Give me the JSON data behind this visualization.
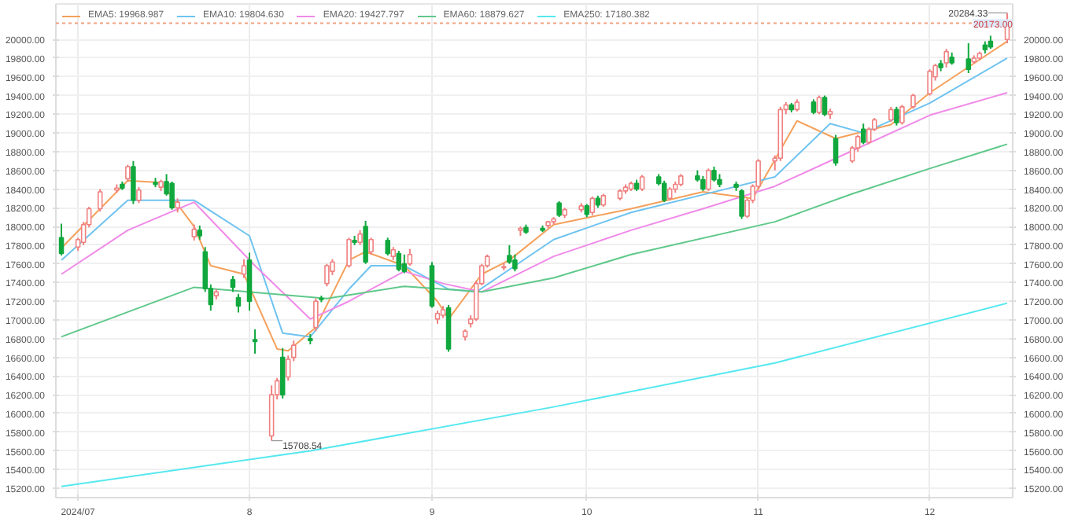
{
  "chart_data": {
    "type": "candlestick",
    "x": [
      "2024-06-28",
      "2024-07-01",
      "2024-07-02",
      "2024-07-03",
      "2024-07-05",
      "2024-07-08",
      "2024-07-09",
      "2024-07-10",
      "2024-07-11",
      "2024-07-12",
      "2024-07-15",
      "2024-07-16",
      "2024-07-17",
      "2024-07-18",
      "2024-07-19",
      "2024-07-22",
      "2024-07-23",
      "2024-07-24",
      "2024-07-25",
      "2024-07-26",
      "2024-07-29",
      "2024-07-30",
      "2024-07-31",
      "2024-08-01",
      "2024-08-02",
      "2024-08-05",
      "2024-08-06",
      "2024-08-07",
      "2024-08-08",
      "2024-08-09",
      "2024-08-12",
      "2024-08-13",
      "2024-08-14",
      "2024-08-15",
      "2024-08-16",
      "2024-08-19",
      "2024-08-20",
      "2024-08-21",
      "2024-08-22",
      "2024-08-23",
      "2024-08-26",
      "2024-08-27",
      "2024-08-28",
      "2024-08-29",
      "2024-08-30",
      "2024-09-03",
      "2024-09-04",
      "2024-09-05",
      "2024-09-06",
      "2024-09-09",
      "2024-09-10",
      "2024-09-11",
      "2024-09-12",
      "2024-09-13",
      "2024-09-16",
      "2024-09-17",
      "2024-09-18",
      "2024-09-19",
      "2024-09-20",
      "2024-09-23",
      "2024-09-24",
      "2024-09-25",
      "2024-09-26",
      "2024-09-27",
      "2024-09-30",
      "2024-10-01",
      "2024-10-02",
      "2024-10-03",
      "2024-10-04",
      "2024-10-07",
      "2024-10-08",
      "2024-10-09",
      "2024-10-10",
      "2024-10-11",
      "2024-10-14",
      "2024-10-15",
      "2024-10-16",
      "2024-10-17",
      "2024-10-18",
      "2024-10-21",
      "2024-10-22",
      "2024-10-23",
      "2024-10-24",
      "2024-10-25",
      "2024-10-28",
      "2024-10-29",
      "2024-10-30",
      "2024-10-31",
      "2024-11-01",
      "2024-11-04",
      "2024-11-05",
      "2024-11-06",
      "2024-11-07",
      "2024-11-08",
      "2024-11-11",
      "2024-11-12",
      "2024-11-13",
      "2024-11-14",
      "2024-11-15",
      "2024-11-18",
      "2024-11-19",
      "2024-11-20",
      "2024-11-21",
      "2024-11-22",
      "2024-11-25",
      "2024-11-26",
      "2024-11-27",
      "2024-11-29",
      "2024-12-02",
      "2024-12-03",
      "2024-12-04",
      "2024-12-05",
      "2024-12-06",
      "2024-12-09",
      "2024-12-10",
      "2024-12-11",
      "2024-12-12",
      "2024-12-13",
      "2024-12-16"
    ],
    "ohlc": [
      [
        17880,
        18030,
        17690,
        17710
      ],
      [
        17780,
        17880,
        17740,
        17860
      ],
      [
        17830,
        18050,
        17800,
        18020
      ],
      [
        18020,
        18210,
        17990,
        18190
      ],
      [
        18190,
        18400,
        18160,
        18370
      ],
      [
        18390,
        18450,
        18360,
        18410
      ],
      [
        18450,
        18480,
        18390,
        18410
      ],
      [
        18510,
        18660,
        18480,
        18640
      ],
      [
        18640,
        18700,
        18240,
        18280
      ],
      [
        18280,
        18420,
        18250,
        18390
      ],
      [
        18470,
        18520,
        18420,
        18450
      ],
      [
        18420,
        18500,
        18380,
        18480
      ],
      [
        18480,
        18560,
        18330,
        18350
      ],
      [
        18460,
        18480,
        18180,
        18200
      ],
      [
        18200,
        18300,
        18150,
        18260
      ],
      [
        17890,
        18020,
        17850,
        17970
      ],
      [
        17960,
        18010,
        17860,
        17900
      ],
      [
        17730,
        17780,
        17300,
        17335
      ],
      [
        17335,
        17380,
        17100,
        17165
      ],
      [
        17260,
        17330,
        17220,
        17300
      ],
      [
        17430,
        17470,
        17300,
        17350
      ],
      [
        17240,
        17280,
        17080,
        17150
      ],
      [
        17490,
        17650,
        17450,
        17580
      ],
      [
        17640,
        17720,
        17100,
        17200
      ],
      [
        16790,
        16900,
        16640,
        16770
      ],
      [
        15760,
        16300,
        15708.54,
        16200
      ],
      [
        16200,
        16380,
        16150,
        16350
      ],
      [
        16600,
        16700,
        16160,
        16200
      ],
      [
        16390,
        16620,
        16350,
        16580
      ],
      [
        16600,
        16780,
        16560,
        16730
      ],
      [
        16800,
        16850,
        16740,
        16780
      ],
      [
        16920,
        17230,
        16880,
        17200
      ],
      [
        17230,
        17260,
        17190,
        17220
      ],
      [
        17390,
        17600,
        17360,
        17580
      ],
      [
        17520,
        17650,
        17480,
        17620
      ],
      [
        17580,
        17880,
        17560,
        17860
      ],
      [
        17850,
        17900,
        17800,
        17830
      ],
      [
        17830,
        17960,
        17800,
        17920
      ],
      [
        18000,
        18060,
        17600,
        17620
      ],
      [
        17730,
        17880,
        17700,
        17860
      ],
      [
        17850,
        17880,
        17690,
        17710
      ],
      [
        17680,
        17780,
        17640,
        17750
      ],
      [
        17710,
        17740,
        17520,
        17540
      ],
      [
        17600,
        17700,
        17500,
        17520
      ],
      [
        17600,
        17760,
        17580,
        17700
      ],
      [
        17580,
        17620,
        17130,
        17150
      ],
      [
        17010,
        17100,
        16960,
        17070
      ],
      [
        17050,
        17150,
        17020,
        17110
      ],
      [
        17130,
        17160,
        16660,
        16690
      ],
      [
        16820,
        16900,
        16780,
        16880
      ],
      [
        16960,
        17050,
        16920,
        17010
      ],
      [
        17010,
        17420,
        16990,
        17390
      ],
      [
        17390,
        17600,
        17370,
        17580
      ],
      [
        17580,
        17700,
        17560,
        17680
      ],
      [
        17560,
        17610,
        17530,
        17570
      ],
      [
        17690,
        17800,
        17600,
        17620
      ],
      [
        17640,
        17700,
        17520,
        17550
      ],
      [
        17960,
        18000,
        17900,
        17980
      ],
      [
        17990,
        18020,
        17920,
        17940
      ],
      [
        17980,
        18010,
        17940,
        17960
      ],
      [
        18010,
        18060,
        17980,
        18050
      ],
      [
        18050,
        18100,
        18020,
        18080
      ],
      [
        18250,
        18270,
        18100,
        18120
      ],
      [
        18120,
        18200,
        18090,
        18180
      ],
      [
        18180,
        18250,
        18150,
        18220
      ],
      [
        18220,
        18240,
        18100,
        18130
      ],
      [
        18150,
        18320,
        18120,
        18300
      ],
      [
        18300,
        18330,
        18200,
        18230
      ],
      [
        18230,
        18350,
        18210,
        18330
      ],
      [
        18300,
        18400,
        18280,
        18380
      ],
      [
        18380,
        18450,
        18350,
        18420
      ],
      [
        18400,
        18480,
        18380,
        18460
      ],
      [
        18460,
        18500,
        18380,
        18400
      ],
      [
        18400,
        18550,
        18380,
        18530
      ],
      [
        18530,
        18560,
        18440,
        18460
      ],
      [
        18460,
        18490,
        18260,
        18280
      ],
      [
        18300,
        18420,
        18280,
        18400
      ],
      [
        18400,
        18480,
        18360,
        18450
      ],
      [
        18450,
        18560,
        18430,
        18540
      ],
      [
        18540,
        18600,
        18480,
        18500
      ],
      [
        18500,
        18540,
        18380,
        18400
      ],
      [
        18400,
        18620,
        18380,
        18600
      ],
      [
        18600,
        18640,
        18480,
        18500
      ],
      [
        18500,
        18560,
        18420,
        18450
      ],
      [
        18450,
        18480,
        18380,
        18420
      ],
      [
        18380,
        18400,
        18080,
        18110
      ],
      [
        18110,
        18300,
        18090,
        18280
      ],
      [
        18280,
        18450,
        18250,
        18430
      ],
      [
        18430,
        18720,
        18400,
        18700
      ],
      [
        18700,
        18760,
        18600,
        18730
      ],
      [
        18730,
        19280,
        18700,
        19250
      ],
      [
        19250,
        19330,
        19200,
        19300
      ],
      [
        19300,
        19320,
        19220,
        19250
      ],
      [
        19250,
        19360,
        19230,
        19330
      ],
      [
        19330,
        19360,
        19200,
        19220
      ],
      [
        19220,
        19400,
        19200,
        19380
      ],
      [
        19380,
        19400,
        19180,
        19200
      ],
      [
        19200,
        19260,
        19150,
        19230
      ],
      [
        18940,
        18980,
        18650,
        18680
      ],
      [
        18700,
        18860,
        18680,
        18840
      ],
      [
        18840,
        18980,
        18800,
        18960
      ],
      [
        19040,
        19100,
        18880,
        18900
      ],
      [
        18900,
        19060,
        18880,
        19040
      ],
      [
        19040,
        19160,
        19020,
        19140
      ],
      [
        19140,
        19280,
        19120,
        19250
      ],
      [
        19250,
        19280,
        19080,
        19110
      ],
      [
        19110,
        19300,
        19090,
        19280
      ],
      [
        19280,
        19420,
        19260,
        19400
      ],
      [
        19420,
        19680,
        19400,
        19660
      ],
      [
        19600,
        19740,
        19560,
        19720
      ],
      [
        19740,
        19780,
        19660,
        19700
      ],
      [
        19750,
        19900,
        19700,
        19870
      ],
      [
        19810,
        19860,
        19730,
        19750
      ],
      [
        19790,
        19960,
        19640,
        19680
      ],
      [
        19760,
        19830,
        19740,
        19800
      ],
      [
        19800,
        19870,
        19780,
        19850
      ],
      [
        19940,
        19980,
        19850,
        19890
      ],
      [
        19980,
        20040,
        19900,
        19920
      ],
      [
        20000,
        20284.33,
        19960,
        20173
      ]
    ],
    "series": [
      {
        "type": "line",
        "name": "EMA5: 19968.987",
        "color": "#f5a05a",
        "x": [
          "2024-06-28",
          "2024-07-10",
          "2024-07-16",
          "2024-07-22",
          "2024-07-25",
          "2024-07-31",
          "2024-08-06",
          "2024-08-08",
          "2024-08-13",
          "2024-08-19",
          "2024-08-22",
          "2024-08-29",
          "2024-09-04",
          "2024-09-06",
          "2024-09-12",
          "2024-09-17",
          "2024-09-25",
          "2024-10-09",
          "2024-10-22",
          "2024-10-31",
          "2024-11-08",
          "2024-11-15",
          "2024-11-25",
          "2024-12-02",
          "2024-12-16"
        ],
        "values": [
          17770,
          18490,
          18470,
          18000,
          17580,
          17490,
          16690,
          16670,
          16920,
          17640,
          17730,
          17580,
          17200,
          17010,
          17490,
          17640,
          18020,
          18190,
          18370,
          18300,
          19130,
          18940,
          19090,
          19430,
          19980
        ]
      },
      {
        "type": "line",
        "name": "EMA10: 19804.630",
        "color": "#6fc3f0",
        "x": [
          "2024-06-28",
          "2024-07-10",
          "2024-07-22",
          "2024-08-01",
          "2024-08-07",
          "2024-08-12",
          "2024-08-19",
          "2024-08-23",
          "2024-08-29",
          "2024-09-06",
          "2024-09-11",
          "2024-09-25",
          "2024-10-09",
          "2024-10-22",
          "2024-11-04",
          "2024-11-14",
          "2024-11-20",
          "2024-12-02",
          "2024-12-16"
        ],
        "values": [
          17640,
          18280,
          18280,
          17900,
          16860,
          16820,
          17330,
          17580,
          17580,
          17330,
          17300,
          17860,
          18150,
          18340,
          18530,
          19100,
          19000,
          19320,
          19800
        ]
      },
      {
        "type": "line",
        "name": "EMA20: 19427.797",
        "color": "#f08ae8",
        "x": [
          "2024-06-28",
          "2024-07-10",
          "2024-07-22",
          "2024-08-02",
          "2024-08-12",
          "2024-08-19",
          "2024-08-29",
          "2024-09-05",
          "2024-09-12",
          "2024-09-25",
          "2024-10-09",
          "2024-10-22",
          "2024-11-04",
          "2024-11-18",
          "2024-12-02",
          "2024-12-16"
        ],
        "values": [
          17490,
          17960,
          18260,
          17580,
          17010,
          17200,
          17520,
          17390,
          17300,
          17680,
          17960,
          18190,
          18430,
          18810,
          19190,
          19430
        ]
      },
      {
        "type": "line",
        "name": "EMA60: 18879.627",
        "color": "#5fc88a",
        "x": [
          "2024-06-28",
          "2024-07-22",
          "2024-08-15",
          "2024-08-29",
          "2024-09-12",
          "2024-09-25",
          "2024-10-09",
          "2024-11-04",
          "2024-11-18",
          "2024-12-02",
          "2024-12-16"
        ],
        "values": [
          16820,
          17350,
          17230,
          17360,
          17300,
          17450,
          17700,
          18050,
          18350,
          18620,
          18880
        ]
      },
      {
        "type": "line",
        "name": "EMA250: 17180.382",
        "color": "#55e8f0",
        "x": [
          "2024-06-28",
          "2024-08-12",
          "2024-09-25",
          "2024-11-04",
          "2024-12-16"
        ],
        "values": [
          15220,
          15600,
          16070,
          16540,
          17180
        ]
      }
    ],
    "xlim": [
      "2024-06-27",
      "2024-12-17"
    ],
    "xticks": [
      {
        "value": "2024-07-01",
        "label": "2024/07"
      },
      {
        "value": "2024-08-01",
        "label": "8"
      },
      {
        "value": "2024-09-03",
        "label": "9"
      },
      {
        "value": "2024-10-01",
        "label": "10"
      },
      {
        "value": "2024-11-01",
        "label": "11"
      },
      {
        "value": "2024-12-02",
        "label": "12"
      }
    ],
    "ylim": [
      15100,
      20380
    ],
    "yticks": [
      {
        "value": 15200,
        "label": "15200.00"
      },
      {
        "value": 15400,
        "label": "15400.00"
      },
      {
        "value": 15600,
        "label": "15600.00"
      },
      {
        "value": 15800,
        "label": "15800.00"
      },
      {
        "value": 16000,
        "label": "16000.00"
      },
      {
        "value": 16200,
        "label": "16200.00"
      },
      {
        "value": 16400,
        "label": "16400.00"
      },
      {
        "value": 16600,
        "label": "16600.00"
      },
      {
        "value": 16800,
        "label": "16800.00"
      },
      {
        "value": 17000,
        "label": "17000.00"
      },
      {
        "value": 17200,
        "label": "17200.00"
      },
      {
        "value": 17400,
        "label": "17400.00"
      },
      {
        "value": 17600,
        "label": "17600.00"
      },
      {
        "value": 17800,
        "label": "17800.00"
      },
      {
        "value": 18000,
        "label": "18000.00"
      },
      {
        "value": 18200,
        "label": "18200.00"
      },
      {
        "value": 18400,
        "label": "18400.00"
      },
      {
        "value": 18600,
        "label": "18600.00"
      },
      {
        "value": 18800,
        "label": "18800.00"
      },
      {
        "value": 19000,
        "label": "19000.00"
      },
      {
        "value": 19200,
        "label": "19200.00"
      },
      {
        "value": 19400,
        "label": "19400.00"
      },
      {
        "value": 19600,
        "label": "19600.00"
      },
      {
        "value": 19800,
        "label": "19800.00"
      },
      {
        "value": 20000,
        "label": "20000.00"
      }
    ],
    "y2lim": [
      15100,
      20380
    ],
    "y2ticks": [
      {
        "value": 15200,
        "label": "15200.00"
      },
      {
        "value": 15400,
        "label": "15400.00"
      },
      {
        "value": 15600,
        "label": "15600.00"
      },
      {
        "value": 15800,
        "label": "15800.00"
      },
      {
        "value": 16000,
        "label": "16000.00"
      },
      {
        "value": 16200,
        "label": "16200.00"
      },
      {
        "value": 16400,
        "label": "16400.00"
      },
      {
        "value": 16600,
        "label": "16600.00"
      },
      {
        "value": 16800,
        "label": "16800.00"
      },
      {
        "value": 17000,
        "label": "17000.00"
      },
      {
        "value": 17200,
        "label": "17200.00"
      },
      {
        "value": 17400,
        "label": "17400.00"
      },
      {
        "value": 17600,
        "label": "17600.00"
      },
      {
        "value": 17800,
        "label": "17800.00"
      },
      {
        "value": 18000,
        "label": "18000.00"
      },
      {
        "value": 18200,
        "label": "18200.00"
      },
      {
        "value": 18400,
        "label": "18400.00"
      },
      {
        "value": 18600,
        "label": "18600.00"
      },
      {
        "value": 18800,
        "label": "18800.00"
      },
      {
        "value": 19000,
        "label": "19000.00"
      },
      {
        "value": 19200,
        "label": "19200.00"
      },
      {
        "value": 19400,
        "label": "19400.00"
      },
      {
        "value": 19600,
        "label": "19600.00"
      },
      {
        "value": 19800,
        "label": "19800.00"
      },
      {
        "value": 20000,
        "label": "20000.00"
      }
    ],
    "ref_lines": [
      {
        "axis": "y",
        "value": 20173,
        "label": "20173.00",
        "color": "#f0a080",
        "line_style": "dotted"
      }
    ],
    "annotations": [
      {
        "text": "20284.33",
        "x": "2024-12-16",
        "y": 20284.33
      },
      {
        "text": "15708.54",
        "x": "2024-08-05",
        "y": 15708.54
      }
    ],
    "grid": true,
    "legend": "top left"
  }
}
